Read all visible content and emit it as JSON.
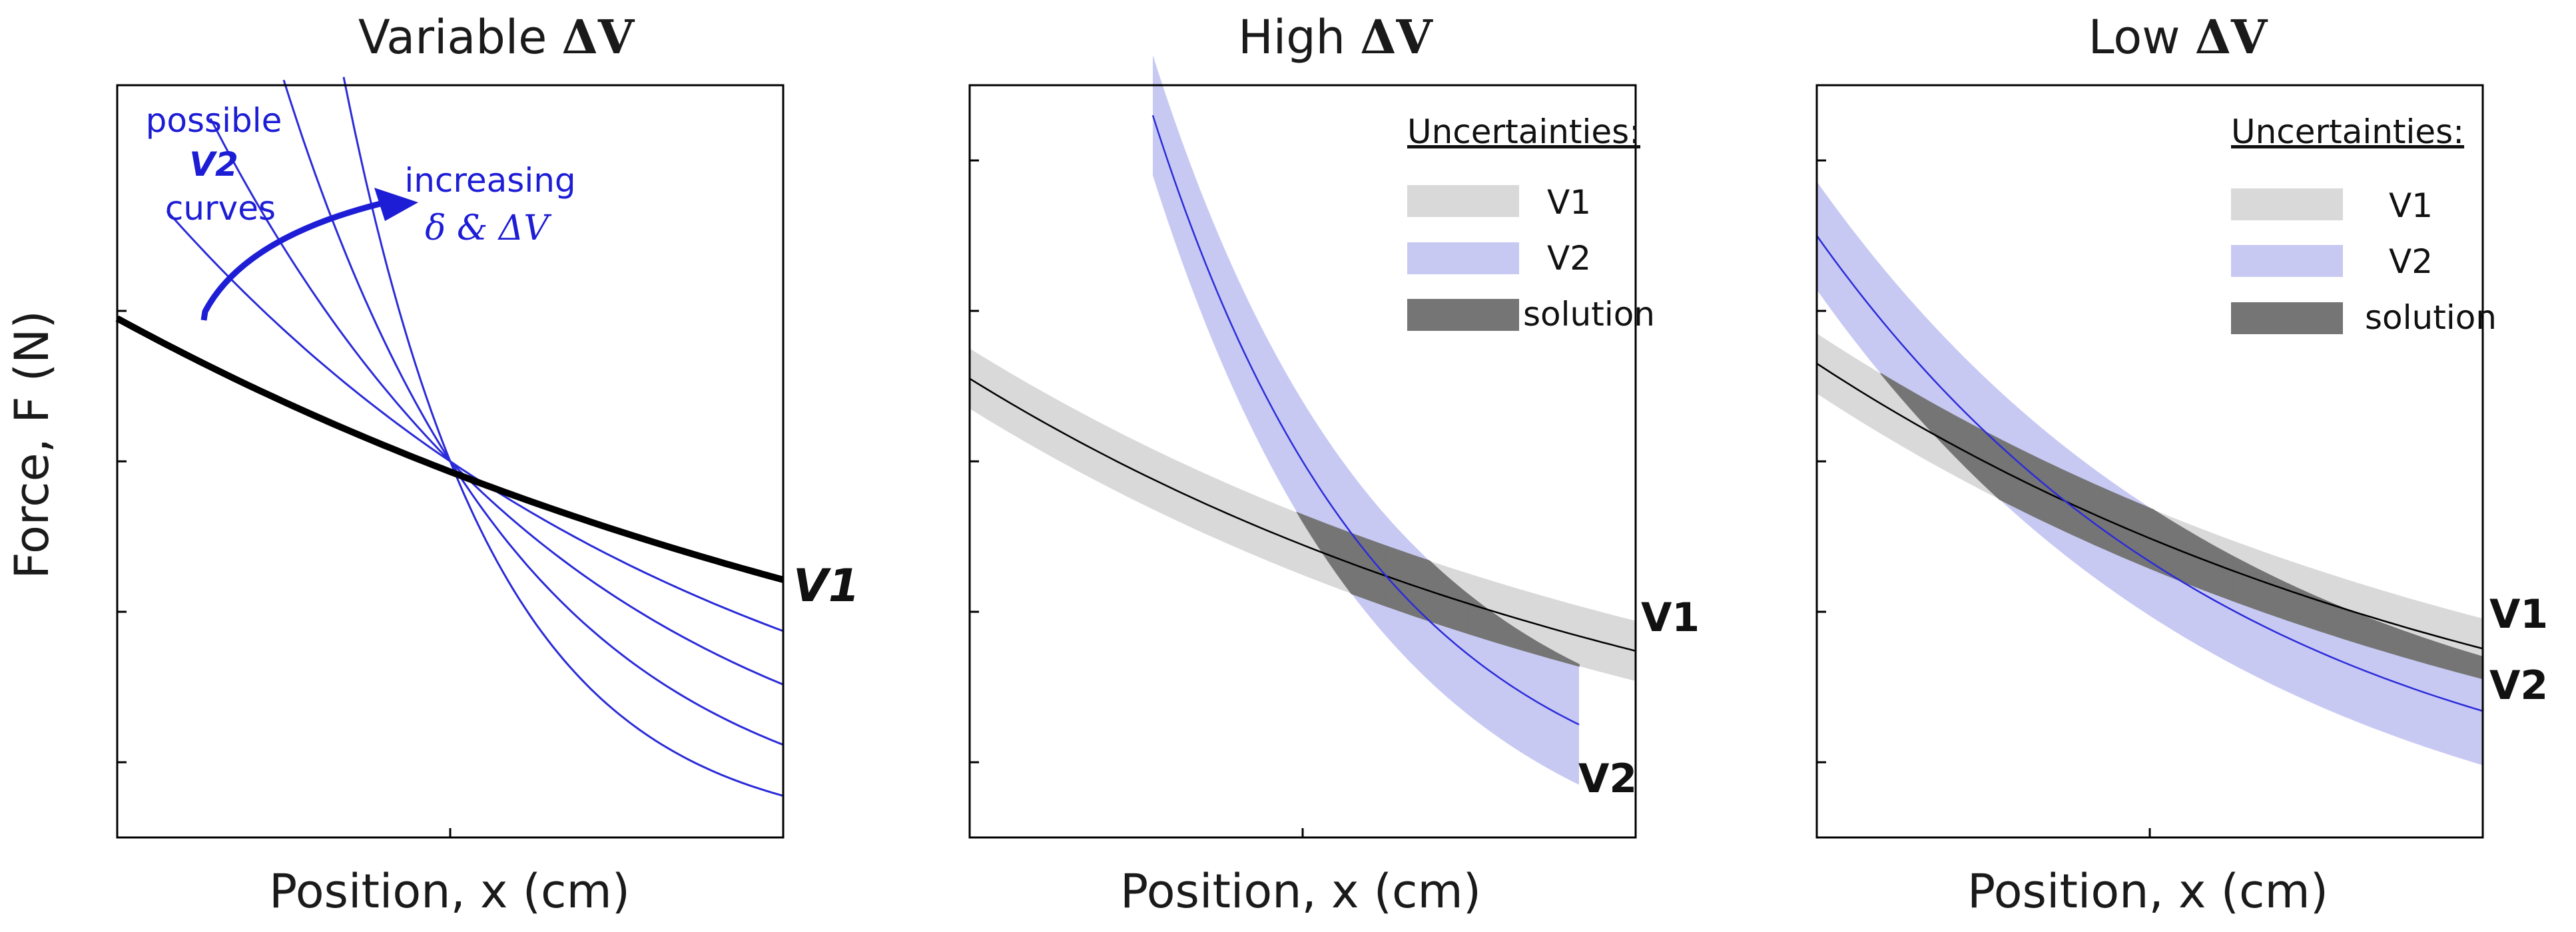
{
  "colors": {
    "v1_line": "#000000",
    "v1_band": "#d9d9d9",
    "v2_line": "#2b2bd9",
    "v2_band": "#c7c9f3",
    "solution": "#757575",
    "annotation": "#1d1dd6"
  },
  "y_axis_label": "Force, F (N)",
  "chart_data": [
    {
      "type": "line",
      "title_prefix": "Variable ",
      "title_symbol": "ΔV",
      "xlabel": "Position, x (cm)",
      "ylabel": "Force, F (N)",
      "xlim": [
        0,
        2
      ],
      "ylim": [
        0,
        5
      ],
      "x_ticks": [
        1,
        2
      ],
      "y_ticks": [
        0.5,
        1.5,
        2.5,
        3.5
      ],
      "v1": {
        "label": "V1",
        "x0": 0,
        "y0": 3.45,
        "k": 0.35
      },
      "v2_curves": [
        {
          "x_start": 0.15,
          "k": 0.6
        },
        {
          "x_start": 0.28,
          "k": 0.9
        },
        {
          "x_start": 0.5,
          "k": 1.4
        },
        {
          "x_start": 0.68,
          "k": 2.2
        }
      ],
      "crossing": {
        "x": 1,
        "y": 2.5
      },
      "annotations": {
        "possible": "possible",
        "v2": "V2",
        "curves": "curves",
        "increasing": "increasing",
        "delta_line": "δ  & ΔV"
      }
    },
    {
      "type": "line",
      "title_prefix": "High ",
      "title_symbol": "ΔV",
      "xlabel": "Position, x (cm)",
      "xlim": [
        0,
        2
      ],
      "ylim": [
        0,
        5
      ],
      "x_ticks": [
        1,
        2
      ],
      "y_ticks": [
        0.5,
        1.5,
        2.5,
        3.5,
        4.5
      ],
      "v1": {
        "label": "V1",
        "x0": 0,
        "y0": 3.05,
        "k": 0.45,
        "x_end": 2,
        "half_width": 0.2
      },
      "v2": {
        "label": "V2",
        "x0": 0.55,
        "y0": 4.8,
        "k": 1.45,
        "x_end": 1.83,
        "half_width": 0.4
      },
      "legend": {
        "title": "Uncertainties:",
        "items": [
          "V1",
          "V2",
          "solution"
        ]
      }
    },
    {
      "type": "line",
      "title_prefix": "Low ",
      "title_symbol": "ΔV",
      "xlabel": "Position, x (cm)",
      "xlim": [
        0,
        2
      ],
      "ylim": [
        0,
        5
      ],
      "x_ticks": [
        1,
        2
      ],
      "y_ticks": [
        0.5,
        1.5,
        2.5,
        3.5,
        4.5
      ],
      "v1": {
        "label": "V1",
        "x0": 0,
        "y0": 3.15,
        "k": 0.46,
        "x_end": 2,
        "half_width": 0.2
      },
      "v2": {
        "label": "V2",
        "x0": 0,
        "y0": 4.0,
        "k": 0.78,
        "x_end": 2,
        "half_width": 0.36
      },
      "legend": {
        "title": "Uncertainties:",
        "items": [
          "V1",
          "V2",
          "solution"
        ]
      }
    }
  ]
}
